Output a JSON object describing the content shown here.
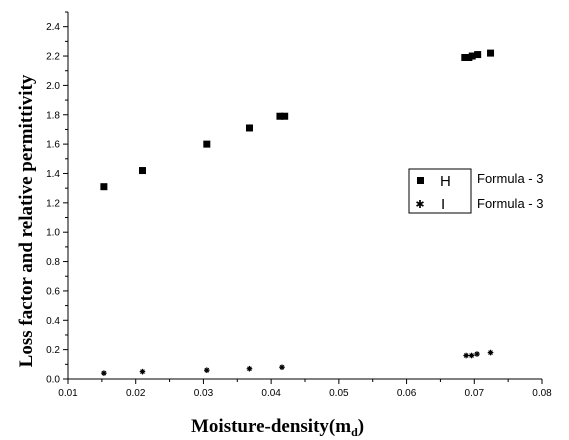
{
  "chart_data": {
    "type": "scatter",
    "xlabel": "Moisture-density(m",
    "xlabel_sub": "d",
    "xlabel_close": ")",
    "ylabel": "Loss factor and relative permittivity",
    "xlim": [
      0.01,
      0.08
    ],
    "ylim": [
      0.0,
      2.5
    ],
    "x_ticks": [
      "0.01",
      "0.02",
      "0.03",
      "0.04",
      "0.05",
      "0.06",
      "0.07",
      "0.08"
    ],
    "y_ticks": [
      "0.0",
      "0.2",
      "0.4",
      "0.6",
      "0.8",
      "1.0",
      "1.2",
      "1.4",
      "1.6",
      "1.8",
      "2.0",
      "2.2",
      "2.4"
    ],
    "legend_position": "right",
    "series": [
      {
        "code": "H",
        "name": "Formula - 3",
        "marker": "square",
        "points": [
          [
            0.0153,
            1.31
          ],
          [
            0.021,
            1.42
          ],
          [
            0.0305,
            1.6
          ],
          [
            0.0368,
            1.71
          ],
          [
            0.0413,
            1.79
          ],
          [
            0.042,
            1.79
          ],
          [
            0.0686,
            2.19
          ],
          [
            0.0692,
            2.19
          ],
          [
            0.0697,
            2.2
          ],
          [
            0.0705,
            2.21
          ],
          [
            0.0724,
            2.22
          ]
        ]
      },
      {
        "code": "I",
        "name": "Formula - 3",
        "marker": "star",
        "points": [
          [
            0.0153,
            0.04
          ],
          [
            0.021,
            0.05
          ],
          [
            0.0305,
            0.06
          ],
          [
            0.0368,
            0.07
          ],
          [
            0.0416,
            0.08
          ],
          [
            0.0688,
            0.16
          ],
          [
            0.0696,
            0.16
          ],
          [
            0.0704,
            0.17
          ],
          [
            0.0724,
            0.18
          ]
        ]
      }
    ]
  }
}
